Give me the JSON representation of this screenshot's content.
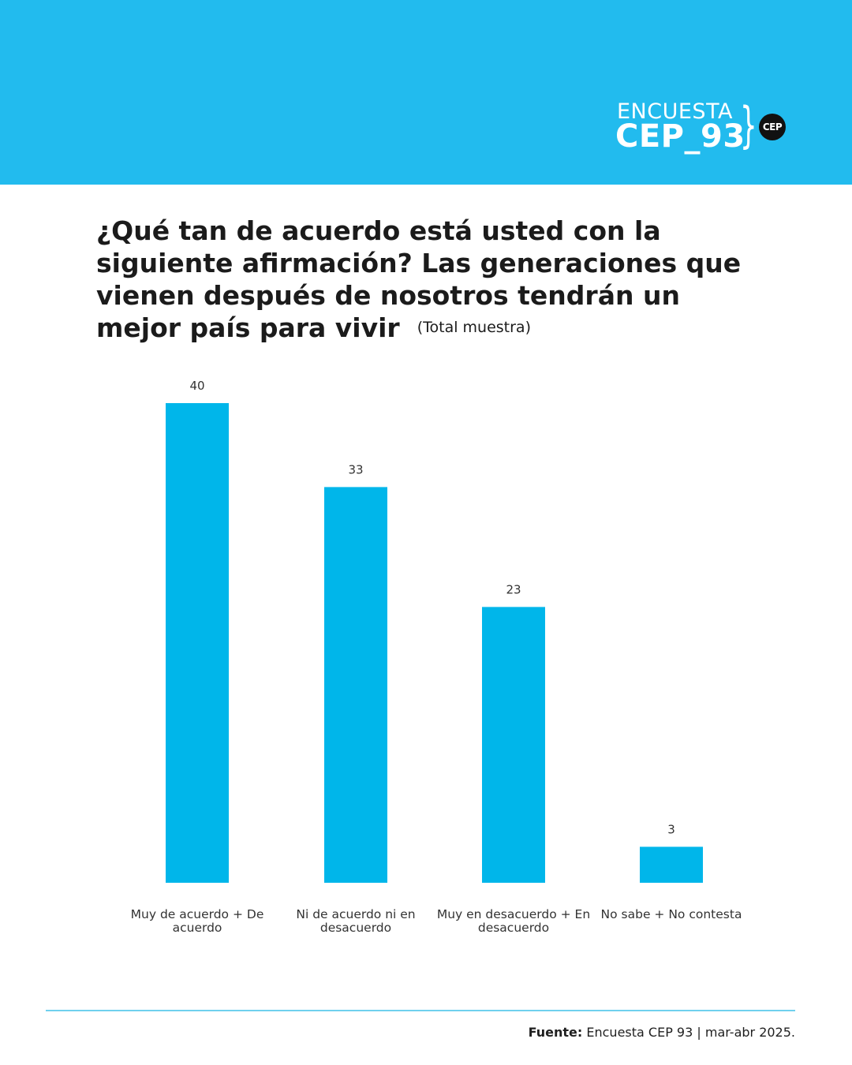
{
  "header": {
    "logo_line1": "ENCUESTA",
    "logo_line2": "CEP_93",
    "badge": "CEP",
    "banner_color": "#22bbee"
  },
  "title": "¿Qué tan de acuerdo está usted con la siguiente afirmación? Las generaciones que vienen después de nosotros tendrán un mejor país para vivir",
  "subtitle": "(Total muestra)",
  "chart_data": {
    "type": "bar",
    "categories": [
      "Muy de acuerdo + De acuerdo",
      "Ni de acuerdo ni en desacuerdo",
      "Muy en desacuerdo + En desacuerdo",
      "No sabe + No contesta"
    ],
    "values": [
      40,
      33,
      23,
      3
    ],
    "title": "¿Qué tan de acuerdo está usted con la siguiente afirmación? Las generaciones que vienen después de nosotros tendrán un mejor país para vivir",
    "xlabel": "",
    "ylabel": "",
    "ylim": [
      0,
      40
    ],
    "grid": false,
    "color": "#00b6ea"
  },
  "footer": {
    "source_label": "Fuente:",
    "source_text": " Encuesta CEP 93 | mar-abr 2025."
  }
}
